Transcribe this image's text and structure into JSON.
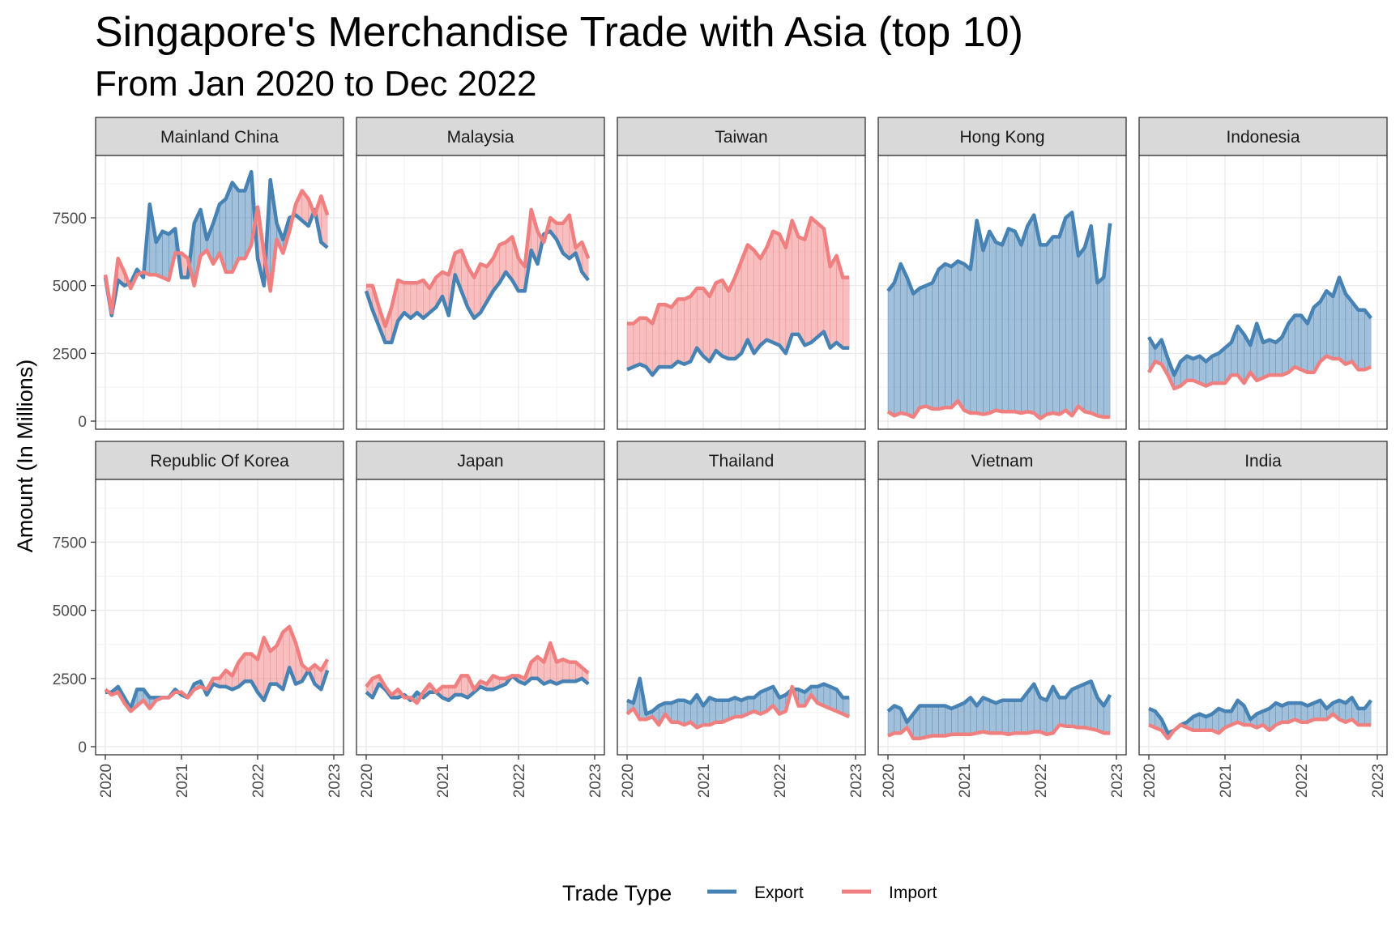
{
  "chart_data": {
    "type": "area",
    "title": "Singapore's Merchandise Trade with Asia (top 10)",
    "subtitle": "From Jan 2020 to Dec 2022",
    "ylabel": "Amount (In Millions)",
    "xlabel": "",
    "ylim": [
      0,
      9800
    ],
    "xlim": [
      2020,
      2023
    ],
    "y_ticks": [
      0,
      2500,
      5000,
      7500
    ],
    "x_ticks": [
      "2020",
      "2021",
      "2022",
      "2023"
    ],
    "grid": true,
    "layout": "facets, 2 rows x 5 columns, shared axes",
    "legend": {
      "title": "Trade Type",
      "position": "bottom",
      "entries": [
        {
          "name": "Export",
          "color": "#4682B4"
        },
        {
          "name": "Import",
          "color": "#F08080"
        }
      ]
    },
    "x_values": "monthly, Jan 2020 to Dec 2022 (36 points)",
    "panels": [
      {
        "name": "Mainland China",
        "series": [
          {
            "name": "Export",
            "values": [
              5300,
              3900,
              5200,
              5000,
              5100,
              5600,
              5300,
              8000,
              6600,
              7000,
              6900,
              7100,
              5300,
              5300,
              7300,
              7800,
              6700,
              7300,
              8000,
              8200,
              8800,
              8500,
              8500,
              9200,
              6000,
              5000,
              8900,
              7300,
              6700,
              7500,
              7600,
              7400,
              7200,
              7800,
              6600,
              6400
            ]
          },
          {
            "name": "Import",
            "values": [
              5400,
              4000,
              6000,
              5500,
              4900,
              5400,
              5500,
              5400,
              5400,
              5300,
              5200,
              6200,
              6200,
              6000,
              5000,
              6100,
              6300,
              5800,
              6200,
              5500,
              5500,
              6000,
              6000,
              6500,
              7900,
              6200,
              4800,
              6700,
              6200,
              7000,
              8000,
              8500,
              8200,
              7600,
              8300,
              7600
            ]
          }
        ]
      },
      {
        "name": "Malaysia",
        "series": [
          {
            "name": "Export",
            "values": [
              4800,
              4100,
              3500,
              2900,
              2900,
              3700,
              4000,
              3800,
              4000,
              3800,
              4000,
              4200,
              4600,
              3900,
              5400,
              4800,
              4200,
              3800,
              4000,
              4400,
              4800,
              5100,
              5500,
              5200,
              4800,
              4800,
              6300,
              5800,
              6900,
              7000,
              6700,
              6200,
              6000,
              6200,
              5500,
              5200
            ]
          },
          {
            "name": "Import",
            "values": [
              5000,
              5000,
              4200,
              3500,
              4200,
              5200,
              5100,
              5100,
              5100,
              5200,
              4900,
              5300,
              5500,
              5400,
              6200,
              6300,
              5700,
              5300,
              5800,
              5700,
              6000,
              6500,
              6600,
              6800,
              6000,
              5700,
              7800,
              7000,
              6600,
              7500,
              7300,
              7300,
              7600,
              6400,
              6600,
              6000
            ]
          }
        ]
      },
      {
        "name": "Taiwan",
        "series": [
          {
            "name": "Export",
            "values": [
              1900,
              2000,
              2100,
              2000,
              1700,
              2000,
              2000,
              2000,
              2200,
              2100,
              2200,
              2700,
              2400,
              2200,
              2600,
              2400,
              2300,
              2300,
              2500,
              3000,
              2500,
              2800,
              3000,
              2900,
              2800,
              2500,
              3200,
              3200,
              2800,
              2900,
              3100,
              3300,
              2700,
              2900,
              2700,
              2700
            ]
          },
          {
            "name": "Import",
            "values": [
              3600,
              3600,
              3800,
              3800,
              3600,
              4300,
              4300,
              4200,
              4500,
              4500,
              4600,
              4900,
              4900,
              4600,
              5100,
              5200,
              4800,
              5300,
              5900,
              6500,
              6300,
              6000,
              6400,
              7000,
              6900,
              6400,
              7400,
              6800,
              6700,
              7500,
              7300,
              7100,
              5700,
              6100,
              5300,
              5300
            ]
          }
        ]
      },
      {
        "name": "Hong Kong",
        "series": [
          {
            "name": "Export",
            "values": [
              4800,
              5100,
              5800,
              5300,
              4700,
              4900,
              5000,
              5100,
              5600,
              5800,
              5700,
              5900,
              5800,
              5600,
              7400,
              6300,
              7000,
              6600,
              6500,
              7100,
              7000,
              6500,
              7200,
              7600,
              6500,
              6500,
              6800,
              6800,
              7500,
              7700,
              6100,
              6400,
              7200,
              5100,
              5300,
              7300
            ]
          },
          {
            "name": "Import",
            "values": [
              350,
              200,
              300,
              250,
              150,
              500,
              550,
              450,
              450,
              500,
              500,
              750,
              400,
              300,
              300,
              250,
              300,
              400,
              350,
              350,
              350,
              300,
              350,
              300,
              100,
              250,
              300,
              250,
              400,
              200,
              550,
              350,
              300,
              200,
              150,
              150
            ]
          }
        ]
      },
      {
        "name": "Indonesia",
        "series": [
          {
            "name": "Export",
            "values": [
              3100,
              2700,
              3000,
              2300,
              1700,
              2200,
              2400,
              2300,
              2400,
              2200,
              2400,
              2500,
              2700,
              2900,
              3500,
              3200,
              2800,
              3600,
              2900,
              3000,
              2900,
              3100,
              3600,
              3900,
              3900,
              3600,
              4200,
              4400,
              4800,
              4600,
              5300,
              4700,
              4400,
              4100,
              4100,
              3800
            ]
          },
          {
            "name": "Import",
            "values": [
              1800,
              2200,
              2100,
              1700,
              1200,
              1300,
              1500,
              1500,
              1400,
              1300,
              1400,
              1400,
              1400,
              1700,
              1700,
              1400,
              1800,
              1500,
              1600,
              1700,
              1700,
              1700,
              1800,
              2000,
              1900,
              1800,
              1800,
              2200,
              2400,
              2300,
              2300,
              2100,
              2200,
              1900,
              1900,
              2000
            ]
          }
        ]
      },
      {
        "name": "Republic Of Korea",
        "series": [
          {
            "name": "Export",
            "values": [
              2000,
              2000,
              2200,
              1800,
              1400,
              2100,
              2100,
              1800,
              1800,
              1800,
              1800,
              2100,
              1900,
              1800,
              2300,
              2400,
              1900,
              2300,
              2200,
              2200,
              2100,
              2200,
              2400,
              2400,
              2000,
              1700,
              2300,
              2300,
              2100,
              2900,
              2300,
              2400,
              2800,
              2300,
              2100,
              2800
            ]
          },
          {
            "name": "Import",
            "values": [
              2100,
              1900,
              2000,
              1600,
              1300,
              1500,
              1700,
              1400,
              1700,
              1800,
              1800,
              2000,
              2000,
              1800,
              2100,
              2200,
              2100,
              2500,
              2500,
              2800,
              2600,
              3100,
              3400,
              3400,
              3200,
              4000,
              3500,
              3700,
              4200,
              4400,
              3800,
              3000,
              2800,
              3000,
              2800,
              3200
            ]
          }
        ]
      },
      {
        "name": "Japan",
        "series": [
          {
            "name": "Export",
            "values": [
              2000,
              1800,
              2300,
              2100,
              1800,
              1800,
              1900,
              1700,
              2000,
              1800,
              2000,
              2000,
              1800,
              1700,
              1900,
              1900,
              1800,
              2000,
              2200,
              2100,
              2100,
              2200,
              2300,
              2600,
              2400,
              2300,
              2500,
              2500,
              2300,
              2400,
              2300,
              2400,
              2400,
              2400,
              2500,
              2300
            ]
          },
          {
            "name": "Import",
            "values": [
              2200,
              2500,
              2600,
              2200,
              1900,
              2100,
              1800,
              1800,
              1600,
              2000,
              2300,
              2000,
              2200,
              2200,
              2200,
              2600,
              2600,
              2100,
              2400,
              2300,
              2600,
              2500,
              2500,
              2600,
              2600,
              2500,
              3100,
              3300,
              3100,
              3800,
              3100,
              3200,
              3100,
              3100,
              2900,
              2700
            ]
          }
        ]
      },
      {
        "name": "Thailand",
        "series": [
          {
            "name": "Export",
            "values": [
              1700,
              1600,
              2500,
              1200,
              1300,
              1500,
              1600,
              1600,
              1700,
              1700,
              1600,
              1900,
              1500,
              1800,
              1700,
              1700,
              1700,
              1800,
              1700,
              1800,
              1800,
              2000,
              2100,
              2200,
              1800,
              1900,
              2100,
              2100,
              2000,
              2200,
              2200,
              2300,
              2200,
              2100,
              1800,
              1800
            ]
          },
          {
            "name": "Import",
            "values": [
              1200,
              1400,
              1000,
              1000,
              1100,
              800,
              1200,
              900,
              900,
              800,
              900,
              700,
              800,
              800,
              900,
              900,
              1000,
              1100,
              1100,
              1200,
              1300,
              1200,
              1300,
              1500,
              1200,
              1300,
              2200,
              1500,
              1500,
              1900,
              1600,
              1500,
              1400,
              1300,
              1200,
              1100
            ]
          }
        ]
      },
      {
        "name": "Vietnam",
        "series": [
          {
            "name": "Export",
            "values": [
              1300,
              1500,
              1400,
              900,
              1200,
              1500,
              1500,
              1500,
              1500,
              1500,
              1400,
              1500,
              1600,
              1800,
              1500,
              1800,
              1700,
              1600,
              1700,
              1700,
              1700,
              1700,
              2000,
              2300,
              1800,
              1700,
              2200,
              1800,
              1800,
              2100,
              2200,
              2300,
              2400,
              1800,
              1500,
              1900
            ]
          },
          {
            "name": "Import",
            "values": [
              400,
              500,
              500,
              700,
              300,
              300,
              350,
              400,
              400,
              400,
              450,
              450,
              450,
              450,
              500,
              550,
              500,
              500,
              500,
              450,
              500,
              500,
              500,
              550,
              550,
              450,
              500,
              800,
              750,
              750,
              700,
              700,
              650,
              600,
              500,
              500
            ]
          }
        ]
      },
      {
        "name": "India",
        "series": [
          {
            "name": "Export",
            "values": [
              1400,
              1300,
              1000,
              500,
              600,
              800,
              900,
              1100,
              1200,
              1100,
              1200,
              1400,
              1300,
              1300,
              1700,
              1500,
              1000,
              1200,
              1300,
              1400,
              1600,
              1500,
              1600,
              1600,
              1600,
              1500,
              1600,
              1700,
              1400,
              1600,
              1700,
              1600,
              1800,
              1400,
              1400,
              1700
            ]
          },
          {
            "name": "Import",
            "values": [
              800,
              700,
              600,
              300,
              600,
              800,
              700,
              600,
              600,
              600,
              600,
              500,
              700,
              800,
              900,
              800,
              800,
              700,
              800,
              600,
              800,
              900,
              900,
              1000,
              900,
              900,
              1000,
              1000,
              1000,
              1200,
              1000,
              900,
              1000,
              800,
              800,
              800
            ]
          }
        ]
      }
    ]
  }
}
